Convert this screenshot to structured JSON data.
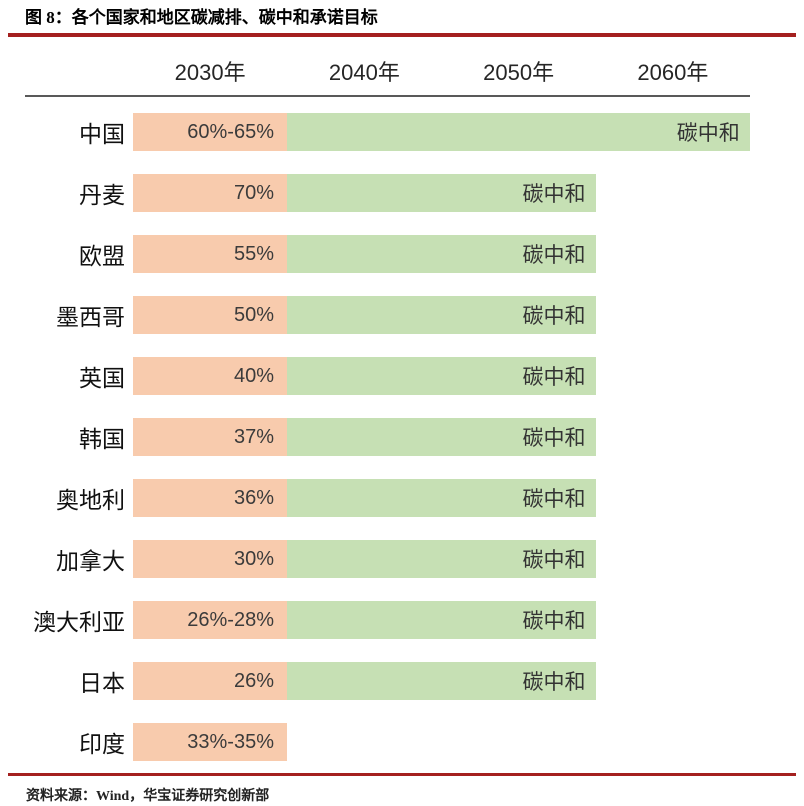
{
  "title": "图 8：各个国家和地区碳减排、碳中和承诺目标",
  "footer": {
    "source_label": "资料来源：",
    "source_text": "Wind，华宝证券研究创新部"
  },
  "colors": {
    "reduction_bar": "#F8CBAD",
    "neutral_bar": "#C6E0B4",
    "title_rule": "#A4201F",
    "header_rule": "#595959"
  },
  "chart_data": {
    "type": "bar",
    "title": "各个国家和地区碳减排、碳中和承诺目标",
    "columns": [
      "2030年",
      "2040年",
      "2050年",
      "2060年"
    ],
    "series_meaning": {
      "orange": "2030年碳减排目标",
      "green": "碳中和承诺达成年份"
    },
    "rows": [
      {
        "country": "中国",
        "target_2030": "60%-65%",
        "neutral_label": "碳中和",
        "neutral_year": 2060
      },
      {
        "country": "丹麦",
        "target_2030": "70%",
        "neutral_label": "碳中和",
        "neutral_year": 2050
      },
      {
        "country": "欧盟",
        "target_2030": "55%",
        "neutral_label": "碳中和",
        "neutral_year": 2050
      },
      {
        "country": "墨西哥",
        "target_2030": "50%",
        "neutral_label": "碳中和",
        "neutral_year": 2050
      },
      {
        "country": "英国",
        "target_2030": "40%",
        "neutral_label": "碳中和",
        "neutral_year": 2050
      },
      {
        "country": "韩国",
        "target_2030": "37%",
        "neutral_label": "碳中和",
        "neutral_year": 2050
      },
      {
        "country": "奥地利",
        "target_2030": "36%",
        "neutral_label": "碳中和",
        "neutral_year": 2050
      },
      {
        "country": "加拿大",
        "target_2030": "30%",
        "neutral_label": "碳中和",
        "neutral_year": 2050
      },
      {
        "country": "澳大利亚",
        "target_2030": "26%-28%",
        "neutral_label": "碳中和",
        "neutral_year": 2050
      },
      {
        "country": "日本",
        "target_2030": "26%",
        "neutral_label": "碳中和",
        "neutral_year": 2050
      },
      {
        "country": "印度",
        "target_2030": "33%-35%",
        "neutral_label": "",
        "neutral_year": null
      }
    ],
    "xlim": [
      2030,
      2060
    ],
    "grid": false,
    "legend": "none"
  }
}
